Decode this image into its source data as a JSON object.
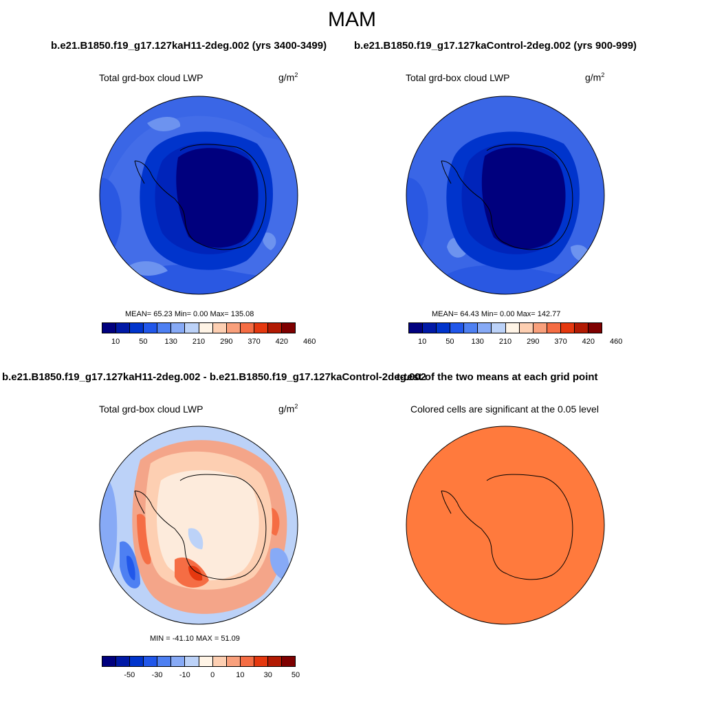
{
  "figure": {
    "title": "MAM"
  },
  "panels": [
    {
      "header": "b.e21.B1850.f19_g17.127kaH11-2deg.002 (yrs 3400-3499)",
      "variable": "Total grd-box cloud LWP",
      "units_base": "g/m",
      "units_exp": "2",
      "stats": "MEAN=  65.23  Min=   0.00  Max= 135.08",
      "colorbar": {
        "ticks": [
          "10",
          "50",
          "130",
          "210",
          "290",
          "370",
          "420",
          "460"
        ],
        "colors": [
          "#00007e",
          "#0019a6",
          "#0034cc",
          "#2157ea",
          "#4e80f2",
          "#87aaf6",
          "#bcd2f8",
          "#fff4e6",
          "#fdcfb2",
          "#f9a07c",
          "#f56d44",
          "#e5380f",
          "#b21a03",
          "#7e0000"
        ]
      }
    },
    {
      "header": "b.e21.B1850.f19_g17.127kaControl-2deg.002 (yrs 900-999)",
      "variable": "Total grd-box cloud LWP",
      "units_base": "g/m",
      "units_exp": "2",
      "stats": "MEAN=  64.43  Min=   0.00  Max= 142.77",
      "colorbar": {
        "ticks": [
          "10",
          "50",
          "130",
          "210",
          "290",
          "370",
          "420",
          "460"
        ],
        "colors": [
          "#00007e",
          "#0019a6",
          "#0034cc",
          "#2157ea",
          "#4e80f2",
          "#87aaf6",
          "#bcd2f8",
          "#fff4e6",
          "#fdcfb2",
          "#f9a07c",
          "#f56d44",
          "#e5380f",
          "#b21a03",
          "#7e0000"
        ]
      }
    },
    {
      "header": "b.e21.B1850.f19_g17.127kaH11-2deg.002 - b.e21.B1850.f19_g17.127kaControl-2deg.002",
      "variable": "Total grd-box cloud LWP",
      "units_base": "g/m",
      "units_exp": "2",
      "stats": "MIN = -41.10 MAX =  51.09",
      "colorbar": {
        "ticks": [
          "-50",
          "-30",
          "-10",
          "0",
          "10",
          "30",
          "50"
        ],
        "colors": [
          "#00007e",
          "#0019a6",
          "#0034cc",
          "#2157ea",
          "#4e80f2",
          "#87aaf6",
          "#bcd2f8",
          "#fff4e6",
          "#fdcfb2",
          "#f9a07c",
          "#f56d44",
          "#e5380f",
          "#b21a03",
          "#7e0000"
        ]
      }
    },
    {
      "header": "t-test of the two means at each grid point",
      "subtitle": "Colored cells are significant at the 0.05 level"
    }
  ],
  "colors": {
    "ocean_base": "#3a66e6",
    "ocean_light": "#6d93ef",
    "antarctica_dark": "#00007e",
    "antarctica_ring": "#0024ba",
    "diff_base": "#bcd2f8",
    "diff_land": "#fdebdc",
    "diff_pos": "#f47b55",
    "diff_neg": "#3f68e8",
    "ttest_fill": "#ff7a3d",
    "coast": "#000000"
  }
}
